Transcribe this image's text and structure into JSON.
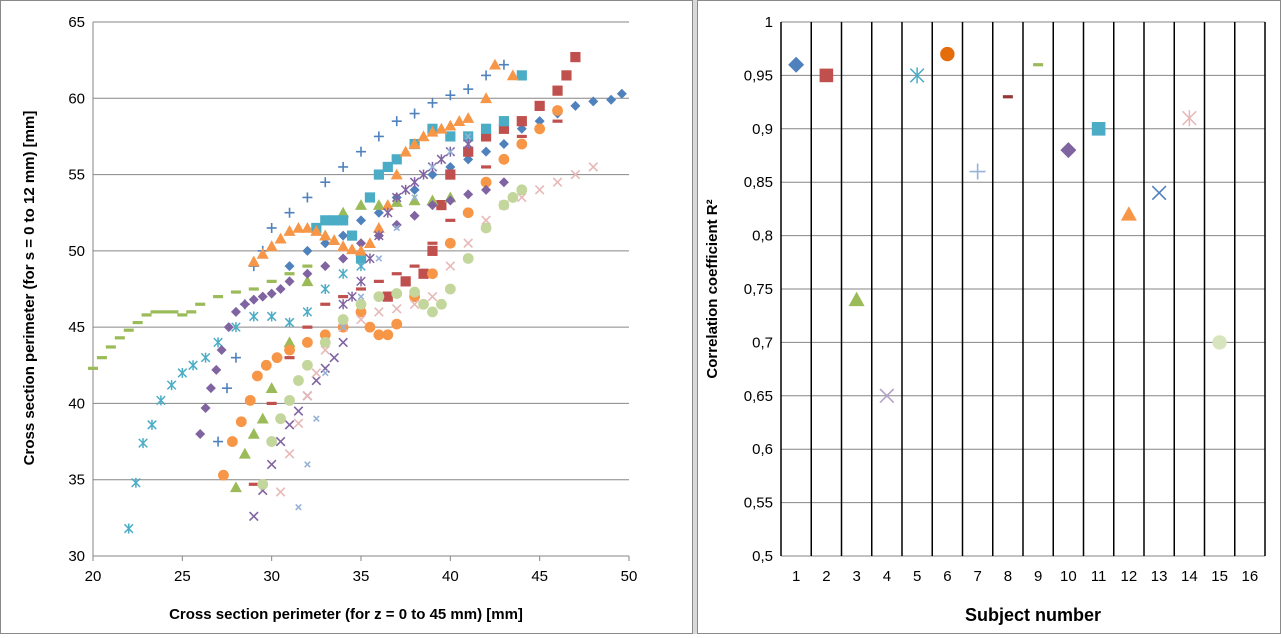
{
  "chart_data": [
    {
      "type": "scatter",
      "xlabel": "Cross section perimeter (for z = 0 to 45 mm) [mm]",
      "ylabel": "Cross section perimeter (for s = 0 to  12 mm) [mm]",
      "xlim": [
        20,
        50
      ],
      "ylim": [
        30,
        65
      ],
      "x_ticks": [
        "20",
        "25",
        "30",
        "35",
        "40",
        "45",
        "50"
      ],
      "y_ticks": [
        "30",
        "35",
        "40",
        "45",
        "50",
        "55",
        "60",
        "65"
      ],
      "grid": "horizontal",
      "legend": "none",
      "series": [
        {
          "color": "#4F81BD",
          "marker": "diamond",
          "x": [
            31,
            32,
            33,
            34,
            35,
            36,
            37,
            38,
            39,
            40,
            41,
            42,
            43,
            44,
            45,
            46,
            47,
            48,
            49,
            49.6
          ],
          "y": [
            49,
            50,
            50.5,
            51,
            52,
            52.5,
            53.5,
            54,
            55,
            55.5,
            56,
            56.5,
            57,
            58,
            58.5,
            59,
            59.5,
            59.8,
            59.9,
            60.3
          ]
        },
        {
          "color": "#C0504D",
          "marker": "square",
          "x": [
            36.5,
            37.5,
            38.5,
            39,
            39.5,
            40,
            41,
            42,
            43,
            44,
            45,
            46,
            46.5,
            47
          ],
          "y": [
            47,
            48,
            48.5,
            50,
            53,
            55,
            56.5,
            57.5,
            58,
            58.5,
            59.5,
            60.5,
            61.5,
            62.7
          ]
        },
        {
          "color": "#9BBB59",
          "marker": "triangle",
          "x": [
            28,
            28.5,
            29,
            29.5,
            30,
            31,
            32,
            33,
            34,
            35,
            36,
            37,
            38,
            39,
            40
          ],
          "y": [
            34.5,
            36.7,
            38,
            39,
            41,
            44,
            48,
            51,
            52.5,
            53,
            53,
            53.2,
            53.3,
            53.3,
            53.5
          ]
        },
        {
          "color": "#8064A2",
          "marker": "x",
          "x": [
            29,
            29.5,
            30,
            30.5,
            31,
            31.5,
            32,
            32.5,
            33,
            33.5,
            34
          ],
          "y": [
            32.6,
            34.3,
            36,
            37.5,
            38.6,
            39.5,
            40.5,
            41.5,
            42.3,
            43,
            44
          ]
        },
        {
          "color": "#4BACC6",
          "marker": "asterisk",
          "x": [
            22,
            22.4,
            22.8,
            23.3,
            23.8,
            24.4,
            25,
            25.6,
            26.3,
            27,
            28,
            29,
            30,
            31,
            32,
            33,
            34,
            35
          ],
          "y": [
            31.8,
            34.8,
            37.4,
            38.6,
            40.2,
            41.2,
            42,
            42.5,
            43,
            44,
            45,
            45.7,
            45.7,
            45.3,
            46,
            47.5,
            48.5,
            49
          ]
        },
        {
          "color": "#F79646",
          "marker": "circle",
          "x": [
            27.3,
            27.8,
            28.3,
            28.8,
            29.2,
            29.7,
            30.3,
            31,
            32,
            33,
            34,
            35,
            35.5,
            36,
            36.5,
            37,
            38,
            39,
            40,
            41,
            42,
            43,
            44,
            45,
            46
          ],
          "y": [
            35.3,
            37.5,
            38.8,
            40.2,
            41.8,
            42.5,
            43,
            43.5,
            44,
            44.5,
            45,
            46,
            45,
            44.5,
            44.5,
            45.2,
            47,
            48.5,
            50.5,
            52.5,
            54.5,
            56,
            57,
            58,
            59.2
          ]
        },
        {
          "color": "#4F81BD",
          "marker": "plus",
          "x": [
            27,
            27.5,
            28,
            28.5,
            29,
            29.5,
            30,
            31,
            32,
            33,
            34,
            35,
            36,
            37,
            38,
            39,
            40,
            41,
            42,
            43
          ],
          "y": [
            37.5,
            41,
            43,
            46.5,
            49,
            50,
            51.5,
            52.5,
            53.5,
            54.5,
            55.5,
            56.5,
            57.5,
            58.5,
            59,
            59.7,
            60.2,
            60.6,
            61.5,
            62.2
          ]
        },
        {
          "color": "#C0504D",
          "marker": "dash",
          "x": [
            29,
            30,
            31,
            32,
            33,
            34,
            35,
            36,
            37,
            38,
            39,
            40,
            42,
            44,
            46
          ],
          "y": [
            34.7,
            40,
            43,
            45,
            46.5,
            47,
            47.5,
            48,
            48.5,
            49,
            50.5,
            52,
            55.5,
            57.5,
            58.5
          ]
        },
        {
          "color": "#9BBB59",
          "marker": "dash",
          "x": [
            20,
            20.5,
            21,
            21.5,
            22,
            22.5,
            23,
            23.5,
            24,
            24.5,
            25,
            25.5,
            26,
            27,
            28,
            29,
            30,
            31,
            32
          ],
          "y": [
            42.3,
            43,
            43.7,
            44.3,
            44.8,
            45.3,
            45.8,
            46,
            46,
            46,
            45.8,
            46,
            46.5,
            47,
            47.3,
            47.5,
            48,
            48.5,
            49
          ]
        },
        {
          "color": "#8064A2",
          "marker": "diamond",
          "x": [
            26,
            26.3,
            26.6,
            26.9,
            27.2,
            27.6,
            28,
            28.5,
            29,
            29.5,
            30,
            30.5,
            31,
            32,
            33,
            34,
            35,
            36,
            37,
            38,
            39,
            40,
            41,
            42,
            43
          ],
          "y": [
            38,
            39.7,
            41,
            42.2,
            43.5,
            45,
            46,
            46.5,
            46.8,
            47,
            47.2,
            47.5,
            48,
            48.5,
            49,
            49.5,
            50.5,
            51,
            51.7,
            52.3,
            53,
            53.3,
            53.7,
            54,
            54.5
          ]
        },
        {
          "color": "#4BACC6",
          "marker": "square",
          "x": [
            32.5,
            33,
            33.5,
            34,
            34.5,
            35,
            35.5,
            36,
            36.5,
            37,
            38,
            39,
            40,
            41,
            42,
            43,
            44
          ],
          "y": [
            51.5,
            52,
            52,
            52,
            51,
            49.5,
            53.5,
            55,
            55.5,
            56,
            57,
            58,
            57.5,
            57.5,
            58,
            58.5,
            61.5
          ]
        },
        {
          "color": "#F79646",
          "marker": "triangle",
          "x": [
            29,
            29.5,
            30,
            30.5,
            31,
            31.5,
            32,
            32.5,
            33,
            33.5,
            34,
            34.5,
            35,
            35.5,
            36,
            36.5,
            37,
            37.5,
            38,
            38.5,
            39,
            39.5,
            40,
            40.5,
            41,
            42,
            42.5,
            43.5
          ],
          "y": [
            49.3,
            49.8,
            50.3,
            50.8,
            51.3,
            51.5,
            51.5,
            51.3,
            51,
            50.7,
            50.3,
            50.1,
            50,
            50.5,
            51.5,
            53,
            55,
            56.5,
            57,
            57.5,
            57.8,
            58,
            58.2,
            58.5,
            58.7,
            60,
            62.2,
            61.5
          ]
        },
        {
          "color": "#8064A2",
          "marker": "asterisk",
          "x": [
            34,
            34.5,
            35,
            35.5,
            36,
            36.5,
            37,
            37.5,
            38,
            38.5,
            39,
            39.5,
            40,
            41
          ],
          "y": [
            46.5,
            47,
            48,
            49.5,
            51,
            52.5,
            53.5,
            54,
            54.5,
            55,
            55.5,
            56,
            56.5,
            57
          ]
        },
        {
          "color": "#E6B9B8",
          "marker": "x",
          "x": [
            30.5,
            31,
            31.5,
            32,
            32.5,
            33,
            34,
            35,
            36,
            37,
            38,
            39,
            40,
            41,
            42,
            43,
            44,
            45,
            46,
            47,
            48
          ],
          "y": [
            34.2,
            36.7,
            38.7,
            40.5,
            42,
            43.5,
            45,
            45.5,
            46,
            46.2,
            46.5,
            47,
            49,
            50.5,
            52,
            53,
            53.5,
            54,
            54.5,
            55,
            55.5
          ]
        },
        {
          "color": "#C3D69B",
          "marker": "circle",
          "x": [
            29.5,
            30,
            30.5,
            31,
            31.5,
            32,
            33,
            34,
            35,
            36,
            37,
            38,
            38.5,
            39,
            39.5,
            40,
            41,
            42,
            43,
            43.5,
            44
          ],
          "y": [
            34.7,
            37.5,
            39,
            40.2,
            41.5,
            42.5,
            44,
            45.5,
            46.5,
            47,
            47.2,
            47.3,
            46.5,
            46,
            46.5,
            47.5,
            49.5,
            51.5,
            53,
            53.5,
            54
          ]
        },
        {
          "color": "#95B3D7",
          "marker": "x-small",
          "x": [
            31.5,
            32,
            32.5,
            33,
            34,
            35,
            36,
            37,
            38,
            39,
            40,
            41
          ],
          "y": [
            33.2,
            36,
            39,
            42,
            45,
            47,
            49.5,
            51.5,
            53.5,
            55.5,
            56.5,
            57.5
          ]
        }
      ]
    },
    {
      "type": "scatter",
      "xlabel": "Subject number",
      "ylabel": "Correlation coefficient R²",
      "xlim": [
        0.5,
        16.5
      ],
      "ylim": [
        0.5,
        1
      ],
      "x_ticks": [
        "1",
        "2",
        "3",
        "4",
        "5",
        "6",
        "7",
        "8",
        "9",
        "10",
        "11",
        "12",
        "13",
        "14",
        "15",
        "16"
      ],
      "y_ticks": [
        "0,5",
        "0,55",
        "0,6",
        "0,65",
        "0,7",
        "0,75",
        "0,8",
        "0,85",
        "0,9",
        "0,95",
        "1"
      ],
      "grid": "both",
      "legend": "none",
      "points": [
        {
          "x": 1,
          "y": 0.96,
          "color": "#4F81BD",
          "marker": "diamond"
        },
        {
          "x": 2,
          "y": 0.95,
          "color": "#C0504D",
          "marker": "square"
        },
        {
          "x": 3,
          "y": 0.74,
          "color": "#9BBB59",
          "marker": "triangle"
        },
        {
          "x": 4,
          "y": 0.65,
          "color": "#B3A2C7",
          "marker": "x"
        },
        {
          "x": 5,
          "y": 0.95,
          "color": "#4BACC6",
          "marker": "asterisk"
        },
        {
          "x": 6,
          "y": 0.97,
          "color": "#E46C0A",
          "marker": "circle"
        },
        {
          "x": 7,
          "y": 0.86,
          "color": "#95B3D7",
          "marker": "plus"
        },
        {
          "x": 8,
          "y": 0.93,
          "color": "#953735",
          "marker": "dash"
        },
        {
          "x": 9,
          "y": 0.96,
          "color": "#9BBB59",
          "marker": "dash"
        },
        {
          "x": 10,
          "y": 0.88,
          "color": "#8064A2",
          "marker": "diamond"
        },
        {
          "x": 11,
          "y": 0.9,
          "color": "#4BACC6",
          "marker": "square"
        },
        {
          "x": 12,
          "y": 0.82,
          "color": "#F79646",
          "marker": "triangle"
        },
        {
          "x": 13,
          "y": 0.84,
          "color": "#4F81BD",
          "marker": "x"
        },
        {
          "x": 14,
          "y": 0.91,
          "color": "#E6B9B8",
          "marker": "asterisk"
        },
        {
          "x": 15,
          "y": 0.7,
          "color": "#D7E4BD",
          "marker": "circle"
        }
      ]
    }
  ]
}
